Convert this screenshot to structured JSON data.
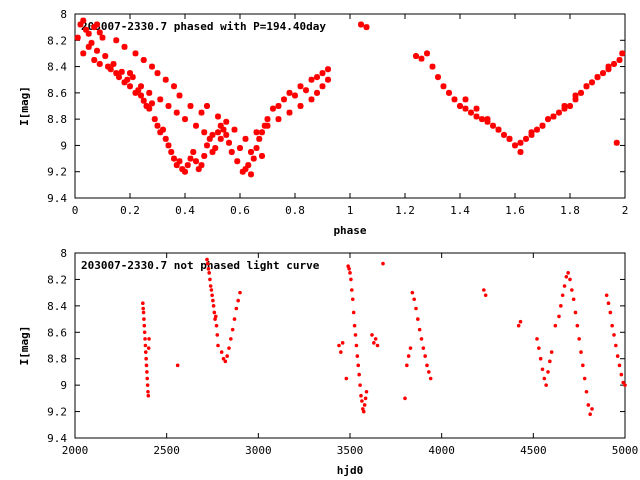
{
  "chart_data": [
    {
      "type": "scatter",
      "title": "203007-2330.7 phased with P=194.40day",
      "xlabel": "phase",
      "ylabel": "I[mag]",
      "xlim": [
        0,
        2
      ],
      "ylim": [
        8,
        9.4
      ],
      "y_inverted": true,
      "grid": false,
      "legend": "none",
      "marker": "star",
      "color": "#ff0000",
      "xticks": [
        "0",
        "0.2",
        "0.4",
        "0.6",
        "0.8",
        "1",
        "1.2",
        "1.4",
        "1.6",
        "1.8",
        "2"
      ],
      "yticks": [
        "8",
        "8.2",
        "8.4",
        "8.6",
        "8.8",
        "9",
        "9.2",
        "9.4"
      ],
      "series": [
        {
          "x": [
            0.01,
            0.02,
            0.03,
            0.04,
            0.05,
            0.06,
            0.07,
            0.08,
            0.09,
            0.1,
            0.03,
            0.05,
            0.07,
            0.08,
            0.09,
            0.11,
            0.12,
            0.13,
            0.14,
            0.15,
            0.16,
            0.17,
            0.18,
            0.19,
            0.2,
            0.21,
            0.22,
            0.23,
            0.24,
            0.25,
            0.26,
            0.27,
            0.28,
            0.29,
            0.3,
            0.31,
            0.32,
            0.33,
            0.34,
            0.35,
            0.36,
            0.37,
            0.38,
            0.39,
            0.4,
            0.41,
            0.42,
            0.43,
            0.44,
            0.45,
            0.46,
            0.47,
            0.48,
            0.49,
            0.5,
            0.51,
            0.52,
            0.53,
            0.54,
            0.55,
            0.57,
            0.59,
            0.61,
            0.62,
            0.63,
            0.64,
            0.65,
            0.66,
            0.67,
            0.68,
            0.69,
            0.7,
            0.72,
            0.74,
            0.76,
            0.78,
            0.8,
            0.82,
            0.84,
            0.86,
            0.88,
            0.9,
            0.92,
            0.15,
            0.18,
            0.22,
            0.25,
            0.28,
            0.3,
            0.33,
            0.36,
            0.38,
            0.42,
            0.46,
            0.48,
            0.52,
            0.55,
            0.58,
            0.62,
            0.66,
            0.7,
            0.74,
            0.78,
            0.82,
            0.86,
            0.88,
            0.9,
            0.92,
            0.2,
            0.24,
            0.27,
            0.31,
            0.34,
            0.37,
            0.4,
            0.44,
            0.47,
            0.5,
            0.53,
            0.56,
            0.6,
            0.64,
            0.68,
            1.04,
            1.06,
            1.24,
            1.26,
            1.28,
            1.3,
            1.32,
            1.34,
            1.36,
            1.38,
            1.4,
            1.42,
            1.44,
            1.46,
            1.48,
            1.5,
            1.52,
            1.54,
            1.56,
            1.58,
            1.6,
            1.62,
            1.64,
            1.66,
            1.68,
            1.7,
            1.72,
            1.74,
            1.76,
            1.78,
            1.8,
            1.82,
            1.84,
            1.86,
            1.88,
            1.9,
            1.92,
            1.94,
            1.96,
            1.98,
            1.99,
            1.42,
            1.46,
            1.5,
            1.54,
            1.58,
            1.62,
            1.66,
            1.7,
            1.74,
            1.78,
            1.82,
            1.86,
            1.9,
            1.94,
            1.97
          ],
          "y": [
            8.18,
            8.08,
            8.05,
            8.12,
            8.15,
            8.22,
            8.1,
            8.08,
            8.14,
            8.18,
            8.3,
            8.25,
            8.35,
            8.28,
            8.38,
            8.32,
            8.4,
            8.42,
            8.38,
            8.45,
            8.48,
            8.44,
            8.52,
            8.5,
            8.55,
            8.48,
            8.6,
            8.58,
            8.62,
            8.66,
            8.7,
            8.72,
            8.68,
            8.8,
            8.85,
            8.9,
            8.88,
            8.95,
            9.0,
            9.05,
            9.1,
            9.15,
            9.12,
            9.18,
            9.2,
            9.15,
            9.1,
            9.05,
            9.12,
            9.18,
            9.15,
            9.08,
            9.0,
            8.95,
            9.05,
            9.02,
            8.9,
            8.85,
            8.88,
            8.92,
            9.05,
            9.12,
            9.2,
            9.18,
            9.15,
            9.22,
            9.1,
            9.02,
            8.95,
            8.9,
            8.85,
            8.8,
            8.72,
            8.7,
            8.65,
            8.6,
            8.62,
            8.55,
            8.58,
            8.5,
            8.48,
            8.45,
            8.42,
            8.2,
            8.25,
            8.3,
            8.35,
            8.4,
            8.45,
            8.5,
            8.55,
            8.62,
            8.7,
            8.75,
            8.7,
            8.78,
            8.82,
            8.88,
            8.95,
            8.9,
            8.85,
            8.8,
            8.75,
            8.7,
            8.65,
            8.6,
            8.55,
            8.5,
            8.45,
            8.55,
            8.6,
            8.65,
            8.7,
            8.75,
            8.8,
            8.85,
            8.9,
            8.92,
            8.95,
            8.98,
            9.02,
            9.05,
            9.08,
            8.08,
            8.1,
            8.32,
            8.34,
            8.3,
            8.4,
            8.48,
            8.55,
            8.6,
            8.65,
            8.7,
            8.72,
            8.75,
            8.78,
            8.8,
            8.82,
            8.85,
            8.88,
            8.92,
            8.95,
            9.0,
            8.98,
            8.95,
            8.9,
            8.88,
            8.85,
            8.8,
            8.78,
            8.75,
            8.72,
            8.7,
            8.65,
            8.6,
            8.55,
            8.52,
            8.48,
            8.45,
            8.42,
            8.38,
            8.35,
            8.3,
            8.65,
            8.72,
            8.8,
            8.88,
            8.95,
            9.05,
            8.92,
            8.85,
            8.78,
            8.7,
            8.62,
            8.55,
            8.48,
            8.4,
            8.98
          ]
        }
      ]
    },
    {
      "type": "scatter",
      "title": "203007-2330.7 not phased light curve",
      "xlabel": "hjd0",
      "ylabel": "I[mag]",
      "xlim": [
        2000,
        5000
      ],
      "ylim": [
        8,
        9.4
      ],
      "y_inverted": true,
      "grid": false,
      "legend": "none",
      "marker": "dot",
      "color": "#ff0000",
      "xticks": [
        "2000",
        "2500",
        "3000",
        "3500",
        "4000",
        "4500",
        "5000"
      ],
      "yticks": [
        "8",
        "8.2",
        "8.4",
        "8.6",
        "8.8",
        "9",
        "9.2",
        "9.4"
      ],
      "series": [
        {
          "x": [
            2370,
            2372,
            2374,
            2376,
            2378,
            2380,
            2382,
            2384,
            2386,
            2388,
            2390,
            2392,
            2394,
            2396,
            2398,
            2400,
            2402,
            2404,
            2560,
            2720,
            2724,
            2728,
            2732,
            2736,
            2740,
            2744,
            2748,
            2752,
            2756,
            2760,
            2764,
            2768,
            2772,
            2776,
            2780,
            2800,
            2810,
            2820,
            2830,
            2840,
            2850,
            2860,
            2870,
            2880,
            2890,
            2900,
            3440,
            3450,
            3460,
            3480,
            3490,
            3495,
            3500,
            3505,
            3510,
            3515,
            3520,
            3525,
            3530,
            3535,
            3540,
            3545,
            3550,
            3555,
            3560,
            3565,
            3570,
            3575,
            3580,
            3585,
            3590,
            3620,
            3630,
            3640,
            3650,
            3680,
            3800,
            3810,
            3820,
            3830,
            3840,
            3850,
            3860,
            3870,
            3880,
            3890,
            3900,
            3910,
            3920,
            3930,
            3940,
            4230,
            4240,
            4420,
            4430,
            4520,
            4530,
            4540,
            4550,
            4560,
            4570,
            4580,
            4590,
            4600,
            4620,
            4640,
            4650,
            4660,
            4670,
            4680,
            4690,
            4700,
            4710,
            4720,
            4730,
            4740,
            4750,
            4760,
            4770,
            4780,
            4790,
            4800,
            4810,
            4820,
            4900,
            4910,
            4920,
            4930,
            4940,
            4950,
            4960,
            4970,
            4980,
            4990,
            5000
          ],
          "y": [
            8.38,
            8.42,
            8.45,
            8.5,
            8.55,
            8.6,
            8.65,
            8.7,
            8.75,
            8.8,
            8.85,
            8.9,
            8.95,
            9.0,
            9.05,
            9.08,
            8.72,
            8.65,
            8.85,
            8.05,
            8.08,
            8.12,
            8.15,
            8.2,
            8.25,
            8.28,
            8.32,
            8.36,
            8.4,
            8.45,
            8.5,
            8.48,
            8.55,
            8.62,
            8.7,
            8.75,
            8.8,
            8.82,
            8.78,
            8.72,
            8.65,
            8.58,
            8.5,
            8.42,
            8.36,
            8.3,
            8.7,
            8.75,
            8.68,
            8.95,
            8.1,
            8.12,
            8.15,
            8.2,
            8.28,
            8.35,
            8.45,
            8.55,
            8.62,
            8.7,
            8.78,
            8.85,
            8.92,
            9.0,
            9.08,
            9.12,
            9.18,
            9.2,
            9.15,
            9.1,
            9.05,
            8.62,
            8.68,
            8.65,
            8.7,
            8.08,
            9.1,
            8.85,
            8.78,
            8.72,
            8.3,
            8.35,
            8.42,
            8.5,
            8.58,
            8.65,
            8.72,
            8.78,
            8.85,
            8.9,
            8.95,
            8.28,
            8.32,
            8.55,
            8.52,
            8.65,
            8.72,
            8.8,
            8.88,
            8.95,
            9.0,
            8.9,
            8.82,
            8.75,
            8.55,
            8.48,
            8.4,
            8.32,
            8.25,
            8.18,
            8.15,
            8.2,
            8.28,
            8.35,
            8.45,
            8.55,
            8.65,
            8.75,
            8.85,
            8.95,
            9.05,
            9.15,
            9.22,
            9.18,
            8.32,
            8.38,
            8.45,
            8.55,
            8.62,
            8.7,
            8.78,
            8.85,
            8.92,
            8.98,
            9.0
          ]
        }
      ]
    }
  ]
}
